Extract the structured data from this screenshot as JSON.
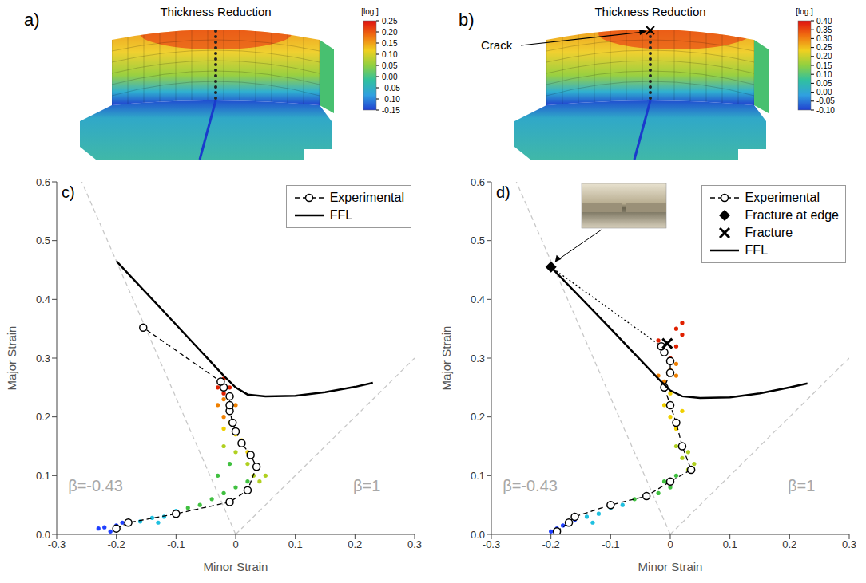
{
  "panels": [
    {
      "letter": "a)",
      "title": "Thickness Reduction",
      "colorbar": {
        "unit": "[log.]",
        "range": [
          -0.15,
          0.25
        ],
        "ticks": [
          0.25,
          {
            "value": 0.2,
            "label": "0.20"
          },
          0.15,
          {
            "value": 0.1,
            "label": "0.10"
          },
          0.05,
          {
            "value": 0,
            "label": "0.00"
          },
          -0.05,
          {
            "value": -0.1,
            "label": "-0.10"
          },
          -0.15
        ]
      }
    },
    {
      "letter": "b)",
      "title": "Thickness Reduction",
      "annotation": "Crack",
      "colorbar": {
        "unit": "[log.]",
        "range": [
          -0.1,
          0.4
        ],
        "ticks": [
          {
            "value": 0.4,
            "label": "0.40"
          },
          0.35,
          {
            "value": 0.3,
            "label": "0.30"
          },
          0.25,
          {
            "value": 0.2,
            "label": "0.20"
          },
          0.15,
          {
            "value": 0.1,
            "label": "0.10"
          },
          0.05,
          {
            "value": 0,
            "label": "0.00"
          },
          -0.05,
          {
            "value": -0.1,
            "label": "-0.10"
          }
        ]
      }
    }
  ],
  "chart_data": [
    {
      "type": "scatter",
      "title": "c)",
      "x_label": "Minor Strain",
      "y_label": "Major Strain",
      "xlim": [
        -0.3,
        0.3
      ],
      "ylim": [
        0,
        0.6
      ],
      "xticks": [
        -0.3,
        -0.2,
        -0.1,
        0,
        0.1,
        0.2,
        0.3
      ],
      "yticks": [
        {
          "value": 0,
          "label": "0.0"
        },
        0.1,
        0.2,
        0.3,
        0.4,
        0.5,
        0.6
      ],
      "grid": false,
      "legend": "upper right",
      "annotations": [
        {
          "text": "β=-0.43",
          "x": -0.235,
          "y": 0.08,
          "color": "#a8a8a8"
        },
        {
          "text": "β=1",
          "x": 0.22,
          "y": 0.08,
          "color": "#a8a8a8"
        }
      ],
      "series": [
        {
          "type": "line",
          "line_style": "dashed",
          "marker": "none",
          "color": "#c8c8c8",
          "x": [
            0,
            -0.258
          ],
          "y": [
            0,
            0.6
          ]
        },
        {
          "type": "line",
          "line_style": "dashed",
          "marker": "none",
          "color": "#c8c8c8",
          "x": [
            0,
            0.3
          ],
          "y": [
            0,
            0.3
          ]
        },
        {
          "type": "scatter",
          "marker": "dot",
          "x": [
            -0.23,
            -0.22,
            -0.2,
            -0.21,
            -0.19,
            -0.16,
            -0.14,
            -0.12,
            -0.1,
            -0.13,
            -0.08,
            -0.06,
            -0.04,
            -0.02,
            0,
            -0.03,
            -0.01,
            0.02,
            0.03,
            0.04,
            0.05,
            0.02,
            0,
            -0.02,
            0.02,
            0.01,
            0,
            -0.02,
            -0.01,
            -0.02,
            -0.01,
            0,
            -0.03,
            -0.02,
            -0.02,
            -0.01,
            -0.03,
            -0.02
          ],
          "y": [
            0.01,
            0.012,
            0.015,
            0.005,
            0.02,
            0.022,
            0.028,
            0.03,
            0.04,
            0.02,
            0.045,
            0.05,
            0.06,
            0.07,
            0.08,
            0.1,
            0.12,
            0.09,
            0.1,
            0.09,
            0.1,
            0.12,
            0.14,
            0.15,
            0.14,
            0.16,
            0.17,
            0.18,
            0.19,
            0.2,
            0.21,
            0.22,
            0.22,
            0.23,
            0.24,
            0.25,
            0.25,
            0.265
          ],
          "colors": [
            "#1f3fff",
            "#1f3fff",
            "#1f3fff",
            "#1f3fff",
            "#1f3fff",
            "#20c0e0",
            "#20c0e0",
            "#20c0e0",
            "#20c0e0",
            "#20c0e0",
            "#40c040",
            "#40c040",
            "#40c040",
            "#40c040",
            "#40c040",
            "#40c040",
            "#40c040",
            "#40c040",
            "#b0d020",
            "#b0d020",
            "#b0d020",
            "#b0d020",
            "#b0d020",
            "#b0d020",
            "#f0d000",
            "#f0d000",
            "#f0d000",
            "#f0d000",
            "#f0d000",
            "#f08000",
            "#f08000",
            "#f08000",
            "#f08000",
            "#f08000",
            "#e02000",
            "#e02000",
            "#e02000",
            "#e02000"
          ]
        },
        {
          "name": "Experimental",
          "type": "line",
          "line_style": "dashed",
          "marker": "open_circle",
          "color": "#000000",
          "x": [
            -0.2,
            -0.18,
            -0.1,
            -0.01,
            0.02,
            0.035,
            0.025,
            0.01,
            0,
            -0.005,
            -0.01,
            -0.01,
            -0.01,
            -0.02,
            -0.025,
            -0.155
          ],
          "y": [
            0.01,
            0.02,
            0.035,
            0.055,
            0.075,
            0.115,
            0.135,
            0.155,
            0.175,
            0.19,
            0.21,
            0.22,
            0.235,
            0.25,
            0.26,
            0.352
          ]
        },
        {
          "name": "FFL",
          "type": "line",
          "line_style": "solid",
          "marker": "none",
          "color": "#000000",
          "x": [
            -0.2,
            -0.1,
            -0.02,
            0,
            0.02,
            0.05,
            0.1,
            0.15,
            0.2,
            0.23
          ],
          "y": [
            0.465,
            0.357,
            0.27,
            0.25,
            0.238,
            0.235,
            0.236,
            0.242,
            0.251,
            0.258
          ]
        }
      ]
    },
    {
      "type": "scatter",
      "title": "d)",
      "x_label": "Minor Strain",
      "y_label": "Major Strain",
      "xlim": [
        -0.3,
        0.3
      ],
      "ylim": [
        0,
        0.6
      ],
      "xticks": [
        -0.3,
        -0.2,
        -0.1,
        0,
        0.1,
        0.2,
        0.3
      ],
      "yticks": [
        {
          "value": 0,
          "label": "0.0"
        },
        0.1,
        0.2,
        0.3,
        0.4,
        0.5,
        0.6
      ],
      "grid": false,
      "legend": "upper right",
      "annotations": [
        {
          "text": "β=-0.43",
          "x": -0.235,
          "y": 0.08,
          "color": "#a8a8a8"
        },
        {
          "text": "β=1",
          "x": 0.22,
          "y": 0.08,
          "color": "#a8a8a8"
        }
      ],
      "series": [
        {
          "type": "line",
          "line_style": "dashed",
          "marker": "none",
          "color": "#c8c8c8",
          "x": [
            0,
            -0.258
          ],
          "y": [
            0,
            0.6
          ]
        },
        {
          "type": "line",
          "line_style": "dashed",
          "marker": "none",
          "color": "#c8c8c8",
          "x": [
            0,
            0.3
          ],
          "y": [
            0,
            0.3
          ]
        },
        {
          "type": "scatter",
          "marker": "dot",
          "x": [
            -0.2,
            -0.19,
            -0.18,
            -0.17,
            -0.16,
            -0.14,
            -0.12,
            -0.1,
            -0.13,
            -0.08,
            -0.06,
            -0.04,
            -0.02,
            0,
            0.01,
            -0.01,
            0.03,
            0.04,
            0.02,
            0.01,
            0.03,
            0.01,
            0,
            0.02,
            -0.01,
            0,
            -0.01,
            0.01,
            0,
            -0.02,
            0.01,
            0,
            -0.01,
            0.01,
            0.02,
            0.01,
            -0.02,
            0.02
          ],
          "y": [
            0.005,
            0.01,
            0.015,
            0.02,
            0.025,
            0.03,
            0.035,
            0.045,
            0.02,
            0.05,
            0.06,
            0.065,
            0.07,
            0.08,
            0.1,
            0.09,
            0.11,
            0.12,
            0.13,
            0.15,
            0.14,
            0.18,
            0.2,
            0.21,
            0.22,
            0.24,
            0.26,
            0.27,
            0.28,
            0.27,
            0.29,
            0.3,
            0.31,
            0.32,
            0.34,
            0.35,
            0.33,
            0.36
          ],
          "colors": [
            "#1f3fff",
            "#1f3fff",
            "#1f3fff",
            "#1f3fff",
            "#1f3fff",
            "#20c0e0",
            "#20c0e0",
            "#20c0e0",
            "#20c0e0",
            "#20c0e0",
            "#40c040",
            "#40c040",
            "#40c040",
            "#40c040",
            "#40c040",
            "#40c040",
            "#b0d020",
            "#b0d020",
            "#b0d020",
            "#b0d020",
            "#b0d020",
            "#f0d000",
            "#f0d000",
            "#f0d000",
            "#f0d000",
            "#f0d000",
            "#f08000",
            "#f08000",
            "#f08000",
            "#f08000",
            "#f08000",
            "#e02000",
            "#e02000",
            "#e02000",
            "#e02000",
            "#e02000",
            "#e02000",
            "#e02000"
          ]
        },
        {
          "type": "line",
          "line_style": "dotted",
          "marker": "none",
          "color": "#000000",
          "x": [
            -0.015,
            -0.2
          ],
          "y": [
            0.32,
            0.455
          ]
        },
        {
          "name": "Experimental",
          "type": "line",
          "line_style": "dashed",
          "marker": "open_circle",
          "color": "#000000",
          "x": [
            -0.19,
            -0.17,
            -0.16,
            -0.1,
            -0.04,
            0,
            0.035,
            0.02,
            0.01,
            0,
            -0.01,
            0,
            0,
            -0.01,
            -0.015
          ],
          "y": [
            0.005,
            0.02,
            0.03,
            0.05,
            0.065,
            0.09,
            0.11,
            0.15,
            0.19,
            0.22,
            0.25,
            0.275,
            0.295,
            0.31,
            0.32
          ]
        },
        {
          "name": "Fracture at edge",
          "type": "scatter",
          "marker": "diamond",
          "color": "#000000",
          "x": [
            -0.2
          ],
          "y": [
            0.455
          ]
        },
        {
          "name": "Fracture",
          "type": "scatter",
          "marker": "x",
          "color": "#000000",
          "x": [
            -0.005
          ],
          "y": [
            0.325
          ]
        },
        {
          "name": "FFL",
          "type": "line",
          "line_style": "solid",
          "marker": "none",
          "color": "#000000",
          "x": [
            -0.2,
            -0.1,
            -0.02,
            0,
            0.02,
            0.05,
            0.1,
            0.15,
            0.2,
            0.23
          ],
          "y": [
            0.455,
            0.35,
            0.265,
            0.245,
            0.235,
            0.232,
            0.233,
            0.24,
            0.25,
            0.257
          ]
        }
      ]
    }
  ]
}
